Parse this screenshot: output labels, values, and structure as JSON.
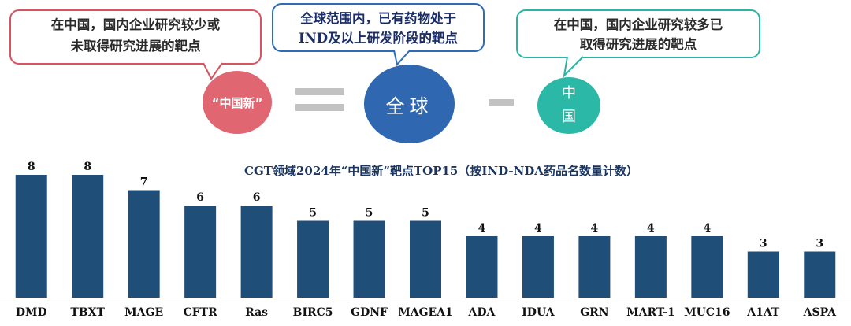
{
  "callouts": {
    "left": [
      "在中国，国内企业研究较少或",
      "未取得研究进展的靶点"
    ],
    "mid": [
      "全球范围内，已有药物处于",
      "IND及以上研发阶段的靶点"
    ],
    "right": [
      "在中国，国内企业研究较多已",
      "取得研究进展的靶点"
    ]
  },
  "equation": {
    "china_new": "“中国新”",
    "global": "全球",
    "china": [
      "中",
      "国"
    ]
  },
  "colors": {
    "bar": "#1f4e79",
    "china_new": "#e06672",
    "global": "#2f67b0",
    "china": "#2cb8a7",
    "operator": "#c2c2c2"
  },
  "chart_data": {
    "type": "bar",
    "title": "CGT领域2024年“中国新”靶点TOP15（按IND-NDA药品名数量计数）",
    "categories": [
      "DMD",
      "TBXT",
      "MAGE",
      "CFTR",
      "Ras",
      "BIRC5",
      "GDNF",
      "MAGEA1",
      "ADA",
      "IDUA",
      "GRN",
      "MART-1",
      "MUC16",
      "A1AT",
      "ASPA"
    ],
    "values": [
      8,
      8,
      7,
      6,
      6,
      5,
      5,
      5,
      4,
      4,
      4,
      4,
      4,
      3,
      3
    ],
    "data_labels": true,
    "ylim": [
      0,
      8
    ]
  }
}
